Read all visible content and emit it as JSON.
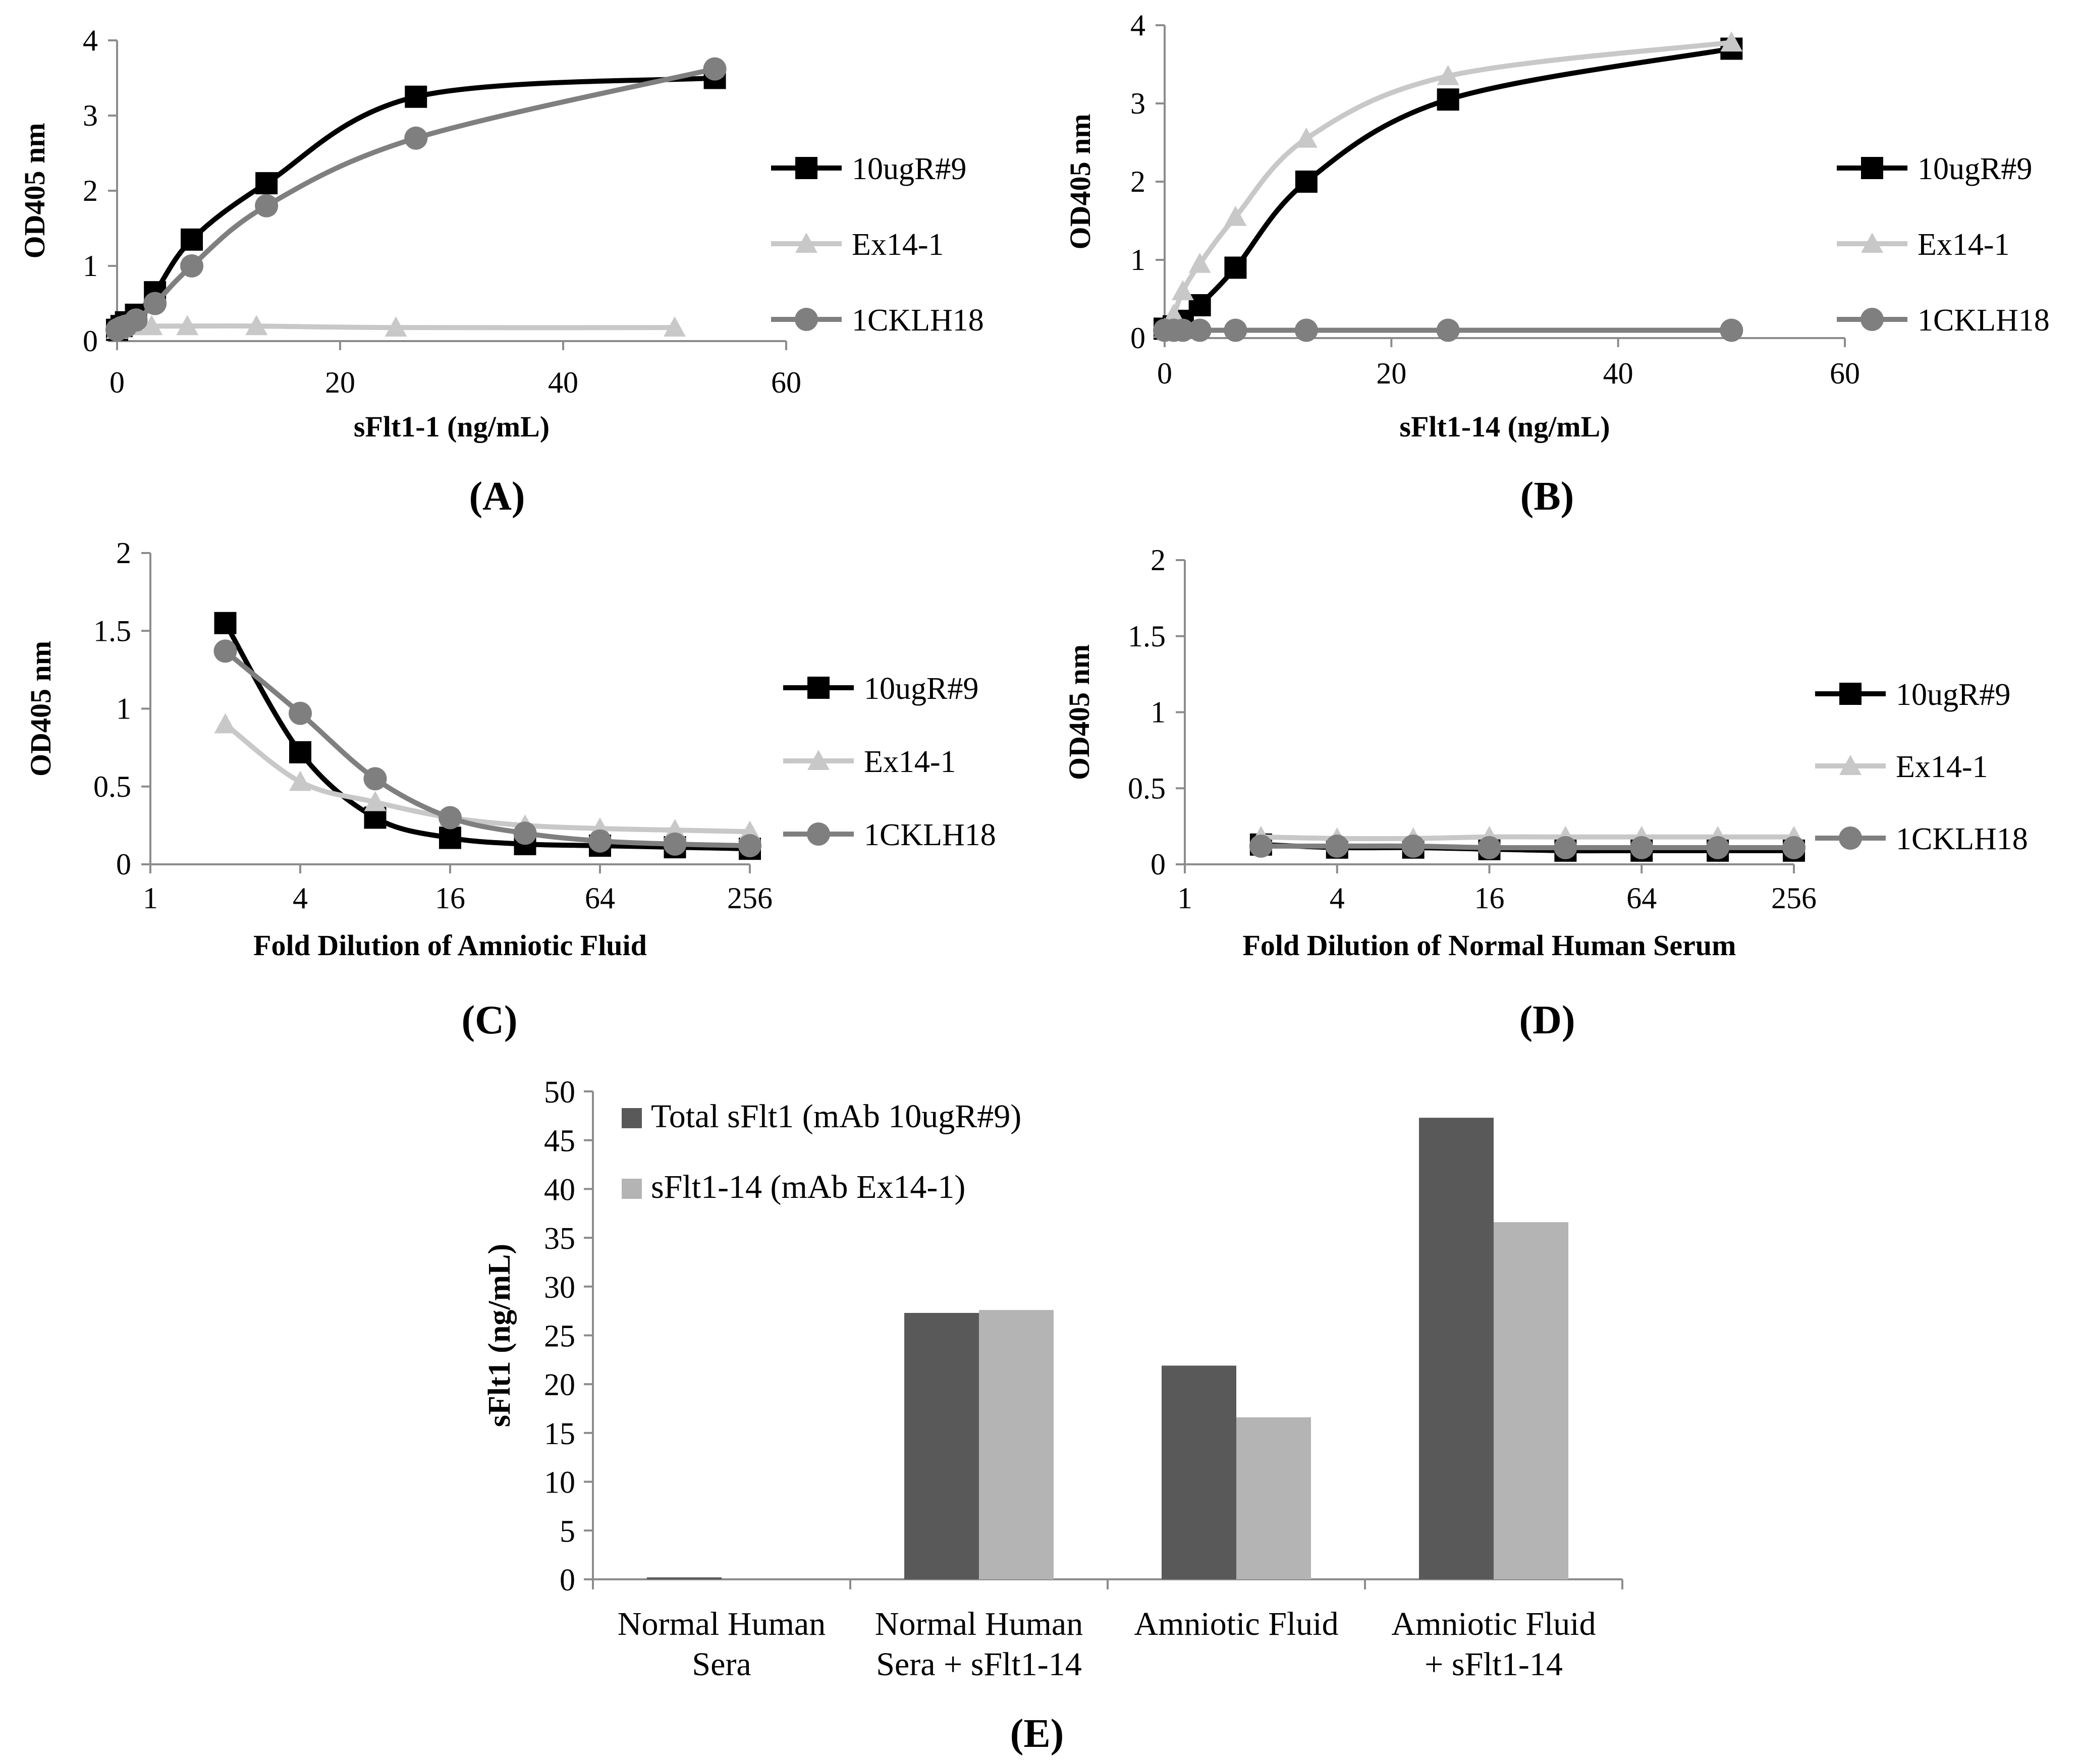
{
  "chart_data": [
    {
      "panel": "(A)",
      "type": "line",
      "xlabel": "sFlt1-1 (ng/mL)",
      "ylabel": "OD405 nm",
      "x_scale": "linear",
      "xlim": [
        0,
        60
      ],
      "ylim": [
        0,
        4
      ],
      "x_ticks": [
        0,
        20,
        40,
        60
      ],
      "x_tick_labels": [
        "0",
        "20",
        "40",
        "60"
      ],
      "y_ticks": [
        0,
        1,
        2,
        3,
        4
      ],
      "y_tick_labels": [
        "0",
        "1",
        "2",
        "3",
        "4"
      ],
      "legend": "right",
      "series": [
        {
          "name": "10ugR#9",
          "color": "#000000",
          "marker": "square",
          "x": [
            0,
            0.4,
            0.8,
            1.7,
            3.4,
            6.7,
            13.4,
            26.8,
            53.6
          ],
          "y": [
            0.15,
            0.2,
            0.25,
            0.35,
            0.65,
            1.35,
            2.1,
            3.25,
            3.5
          ]
        },
        {
          "name": "Ex14-1",
          "color": "#c8c8c8",
          "marker": "triangle",
          "x": [
            0,
            0.8,
            1.6,
            3.1,
            6.3,
            12.5,
            25,
            50
          ],
          "y": [
            0.15,
            0.2,
            0.2,
            0.2,
            0.2,
            0.2,
            0.18,
            0.18
          ]
        },
        {
          "name": "1CKLH18",
          "color": "#7f7f7f",
          "marker": "circle",
          "x": [
            0,
            0.4,
            0.8,
            1.7,
            3.4,
            6.7,
            13.4,
            26.8,
            53.6
          ],
          "y": [
            0.15,
            0.18,
            0.2,
            0.28,
            0.5,
            1.0,
            1.8,
            2.7,
            3.62
          ]
        }
      ]
    },
    {
      "panel": "(B)",
      "type": "line",
      "xlabel": "sFlt1-14 (ng/mL)",
      "ylabel": "OD405 nm",
      "x_scale": "linear",
      "xlim": [
        0,
        60
      ],
      "ylim": [
        0,
        4
      ],
      "x_ticks": [
        0,
        20,
        40,
        60
      ],
      "x_tick_labels": [
        "0",
        "20",
        "40",
        "60"
      ],
      "y_ticks": [
        0,
        1,
        2,
        3,
        4
      ],
      "y_tick_labels": [
        "0",
        "1",
        "2",
        "3",
        "4"
      ],
      "legend": "right",
      "series": [
        {
          "name": "10ugR#9",
          "color": "#000000",
          "marker": "square",
          "x": [
            0,
            0.8,
            1.6,
            3.1,
            6.25,
            12.5,
            25,
            50
          ],
          "y": [
            0.12,
            0.15,
            0.22,
            0.42,
            0.9,
            2.0,
            3.05,
            3.7
          ]
        },
        {
          "name": "Ex14-1",
          "color": "#c8c8c8",
          "marker": "triangle",
          "x": [
            0,
            0.8,
            1.6,
            3.1,
            6.25,
            12.5,
            25,
            50
          ],
          "y": [
            0.12,
            0.3,
            0.6,
            0.95,
            1.55,
            2.55,
            3.35,
            3.78
          ]
        },
        {
          "name": "1CKLH18",
          "color": "#7f7f7f",
          "marker": "circle",
          "x": [
            0,
            0.8,
            1.6,
            3.1,
            6.25,
            12.5,
            25,
            50
          ],
          "y": [
            0.1,
            0.1,
            0.1,
            0.1,
            0.1,
            0.1,
            0.1,
            0.1
          ]
        }
      ]
    },
    {
      "panel": "(C)",
      "type": "line",
      "xlabel": "Fold Dilution  of Amniotic  Fluid",
      "ylabel": "OD405 nm",
      "x_scale": "log2",
      "xlim": [
        1,
        256
      ],
      "ylim": [
        0,
        2
      ],
      "x_ticks": [
        1,
        4,
        16,
        64,
        256
      ],
      "x_tick_labels": [
        "1",
        "4",
        "16",
        "64",
        "256"
      ],
      "y_ticks": [
        0,
        0.5,
        1,
        1.5,
        2
      ],
      "y_tick_labels": [
        "0",
        "0.5",
        "1",
        "1.5",
        "2"
      ],
      "legend": "right",
      "series": [
        {
          "name": "10ugR#9",
          "color": "#000000",
          "marker": "square",
          "x": [
            2,
            4,
            8,
            16,
            32,
            64,
            128,
            256
          ],
          "y": [
            1.55,
            0.72,
            0.3,
            0.17,
            0.13,
            0.12,
            0.11,
            0.1
          ]
        },
        {
          "name": "Ex14-1",
          "color": "#c8c8c8",
          "marker": "triangle",
          "x": [
            2,
            4,
            8,
            16,
            32,
            64,
            128,
            256
          ],
          "y": [
            0.9,
            0.53,
            0.4,
            0.3,
            0.25,
            0.23,
            0.22,
            0.21
          ]
        },
        {
          "name": "1CKLH18",
          "color": "#7f7f7f",
          "marker": "circle",
          "x": [
            2,
            4,
            8,
            16,
            32,
            64,
            128,
            256
          ],
          "y": [
            1.37,
            0.97,
            0.55,
            0.3,
            0.2,
            0.15,
            0.13,
            0.12
          ]
        }
      ]
    },
    {
      "panel": "(D)",
      "type": "line",
      "xlabel": "Fold Dilution  of Normal Human  Serum",
      "ylabel": "OD405 nm",
      "x_scale": "log2",
      "xlim": [
        1,
        256
      ],
      "ylim": [
        0,
        2
      ],
      "x_ticks": [
        1,
        4,
        16,
        64,
        256
      ],
      "x_tick_labels": [
        "1",
        "4",
        "16",
        "64",
        "256"
      ],
      "y_ticks": [
        0,
        0.5,
        1,
        1.5,
        2
      ],
      "y_tick_labels": [
        "0",
        "0.5",
        "1",
        "1.5",
        "2"
      ],
      "legend": "right",
      "series": [
        {
          "name": "10ugR#9",
          "color": "#000000",
          "marker": "square",
          "x": [
            2,
            4,
            8,
            16,
            32,
            64,
            128,
            256
          ],
          "y": [
            0.13,
            0.11,
            0.11,
            0.1,
            0.09,
            0.09,
            0.09,
            0.09
          ]
        },
        {
          "name": "Ex14-1",
          "color": "#c8c8c8",
          "marker": "triangle",
          "x": [
            2,
            4,
            8,
            16,
            32,
            64,
            128,
            256
          ],
          "y": [
            0.18,
            0.17,
            0.17,
            0.18,
            0.18,
            0.18,
            0.18,
            0.18
          ]
        },
        {
          "name": "1CKLH18",
          "color": "#7f7f7f",
          "marker": "circle",
          "x": [
            2,
            4,
            8,
            16,
            32,
            64,
            128,
            256
          ],
          "y": [
            0.12,
            0.12,
            0.12,
            0.11,
            0.11,
            0.11,
            0.11,
            0.11
          ]
        }
      ]
    },
    {
      "panel": "(E)",
      "type": "bar",
      "ylabel": "sFlt1 (ng/mL)",
      "xlabel": "",
      "ylim": [
        0,
        50
      ],
      "y_ticks": [
        0,
        5,
        10,
        15,
        20,
        25,
        30,
        35,
        40,
        45,
        50
      ],
      "y_tick_labels": [
        "0",
        "5",
        "10",
        "15",
        "20",
        "25",
        "30",
        "35",
        "40",
        "45",
        "50"
      ],
      "legend": "top-left",
      "categories": [
        [
          "Normal Human",
          "Sera"
        ],
        [
          "Normal Human",
          "Sera + sFlt1-14"
        ],
        [
          "Amniotic Fluid"
        ],
        [
          "Amniotic Fluid",
          "+ sFlt1-14"
        ]
      ],
      "series": [
        {
          "name": "Total sFlt1 (mAb 10ugR#9)",
          "color": "#595959",
          "values": [
            0.2,
            27.3,
            21.9,
            47.3
          ]
        },
        {
          "name": "sFlt1-14 (mAb Ex14-1)",
          "color": "#b4b4b4",
          "values": [
            0,
            27.6,
            16.6,
            36.6
          ]
        }
      ]
    }
  ]
}
